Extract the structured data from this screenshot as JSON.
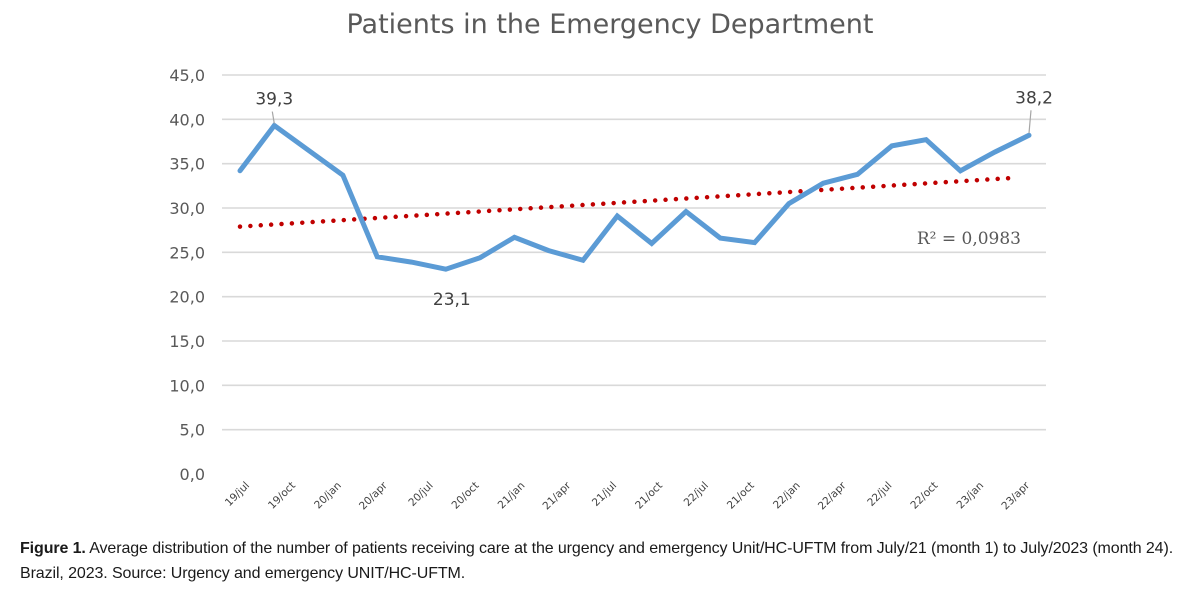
{
  "chart_data": {
    "type": "line",
    "title": "Patients in the Emergency Department",
    "xlabel": "",
    "ylabel": "",
    "ylim": [
      0,
      45
    ],
    "yticks": [
      "0,0",
      "5,0",
      "10,0",
      "15,0",
      "20,0",
      "25,0",
      "30,0",
      "35,0",
      "40,0",
      "45,0"
    ],
    "ytick_values": [
      0,
      5,
      10,
      15,
      20,
      25,
      30,
      35,
      40,
      45
    ],
    "grid": true,
    "x_tick_labels": [
      "19/jul",
      "19/oct",
      "20/jan",
      "20/apr",
      "20/jul",
      "20/oct",
      "21/jan",
      "21/apr",
      "21/jul",
      "21/oct",
      "22/jul",
      "21/oct",
      "22/jan",
      "22/apr",
      "22/jul",
      "22/oct",
      "23/jan",
      "23/apr"
    ],
    "series": [
      {
        "name": "Patients",
        "color": "#5b9bd5",
        "values": [
          34.2,
          39.3,
          36.5,
          33.7,
          24.5,
          23.9,
          23.1,
          24.4,
          26.7,
          25.2,
          24.1,
          29.1,
          26.0,
          29.6,
          26.6,
          26.1,
          30.5,
          32.8,
          33.8,
          37.0,
          37.7,
          34.2,
          36.3,
          38.2
        ]
      }
    ],
    "data_labels": [
      {
        "index": 1,
        "text": "39,3",
        "position": "above"
      },
      {
        "index": 6,
        "text": "23,1",
        "position": "below"
      },
      {
        "index": 23,
        "text": "38,2",
        "position": "above"
      }
    ],
    "trendline": {
      "type": "linear",
      "style": "dotted",
      "color": "#c00000",
      "start_value": 27.9,
      "end_value": 33.4,
      "r2_label": "R² = 0,0983"
    }
  },
  "caption": {
    "label": "Figure 1.",
    "text": " Average distribution of the number of patients receiving care at the urgency and emergency Unit/HC-UFTM from July/21 (month 1) to July/2023 (month 24). Brazil, 2023. Source: Urgency and emergency UNIT/HC-UFTM."
  }
}
